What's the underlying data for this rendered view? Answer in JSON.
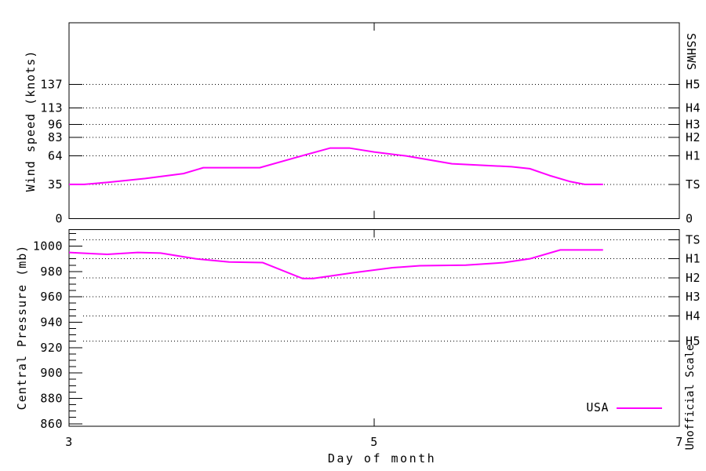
{
  "chart_data": {
    "type": "line",
    "x_axis": {
      "label": "Day of month",
      "range": [
        3,
        7
      ],
      "ticks": [
        "3",
        "5",
        "7"
      ]
    },
    "wind_chart": {
      "ylabel": "Wind speed (knots)",
      "right_axis_label": "SSHWS",
      "yrange": [
        0,
        200
      ],
      "grid": "dotted horizontal lines at Saffir-Simpson category thresholds",
      "yticks": [
        {
          "value": 0,
          "label": "0",
          "right_label": "0",
          "grid": false
        },
        {
          "value": 35,
          "label": "35",
          "right_label": "TS",
          "grid": true
        },
        {
          "value": 64,
          "label": "64",
          "right_label": "H1",
          "grid": true
        },
        {
          "value": 83,
          "label": "83",
          "right_label": "H2",
          "grid": true
        },
        {
          "value": 96,
          "label": "96",
          "right_label": "H3",
          "grid": true
        },
        {
          "value": 113,
          "label": "113",
          "right_label": "H4",
          "grid": true
        },
        {
          "value": 137,
          "label": "137",
          "right_label": "H5",
          "grid": true
        }
      ],
      "points": [
        [
          3.0,
          35
        ],
        [
          3.1,
          35
        ],
        [
          3.25,
          37
        ],
        [
          3.5,
          41
        ],
        [
          3.75,
          46
        ],
        [
          3.88,
          52
        ],
        [
          4.25,
          52
        ],
        [
          4.5,
          63
        ],
        [
          4.71,
          72
        ],
        [
          4.84,
          72
        ],
        [
          5.0,
          68
        ],
        [
          5.21,
          64
        ],
        [
          5.51,
          56
        ],
        [
          5.9,
          53
        ],
        [
          6.02,
          51
        ],
        [
          6.15,
          44
        ],
        [
          6.28,
          38
        ],
        [
          6.38,
          35
        ],
        [
          6.5,
          35
        ]
      ]
    },
    "pressure_chart": {
      "ylabel": "Central Pressure (mb)",
      "right_axis_label": "Unofficial Scale",
      "yrange": [
        858,
        1013
      ],
      "yticks_major": [
        "1000",
        "980",
        "960",
        "940",
        "920",
        "900",
        "880",
        "860"
      ],
      "ytick_major_values": [
        1000,
        980,
        960,
        940,
        920,
        900,
        880,
        860
      ],
      "ytick_minor_step": 5,
      "category_lines": [
        {
          "value": 1005,
          "right_label": "TS"
        },
        {
          "value": 990,
          "right_label": "H1"
        },
        {
          "value": 975,
          "right_label": "H2"
        },
        {
          "value": 960,
          "right_label": "H3"
        },
        {
          "value": 945,
          "right_label": "H4"
        },
        {
          "value": 925,
          "right_label": "H5"
        }
      ],
      "points": [
        [
          3.0,
          995
        ],
        [
          3.25,
          993.5
        ],
        [
          3.45,
          995
        ],
        [
          3.6,
          994.5
        ],
        [
          3.83,
          990
        ],
        [
          4.05,
          987.5
        ],
        [
          4.27,
          987
        ],
        [
          4.53,
          974.5
        ],
        [
          4.6,
          974.5
        ],
        [
          4.86,
          979
        ],
        [
          5.12,
          983
        ],
        [
          5.3,
          984.5
        ],
        [
          5.6,
          985
        ],
        [
          5.85,
          987
        ],
        [
          6.02,
          990
        ],
        [
          6.22,
          997
        ],
        [
          6.5,
          997
        ]
      ]
    },
    "legend": {
      "label": "USA",
      "position": "bottom-right-of-pressure-chart"
    },
    "series_color": "#ff00ff",
    "axis_color": "#000000",
    "background_color": "#ffffff"
  }
}
